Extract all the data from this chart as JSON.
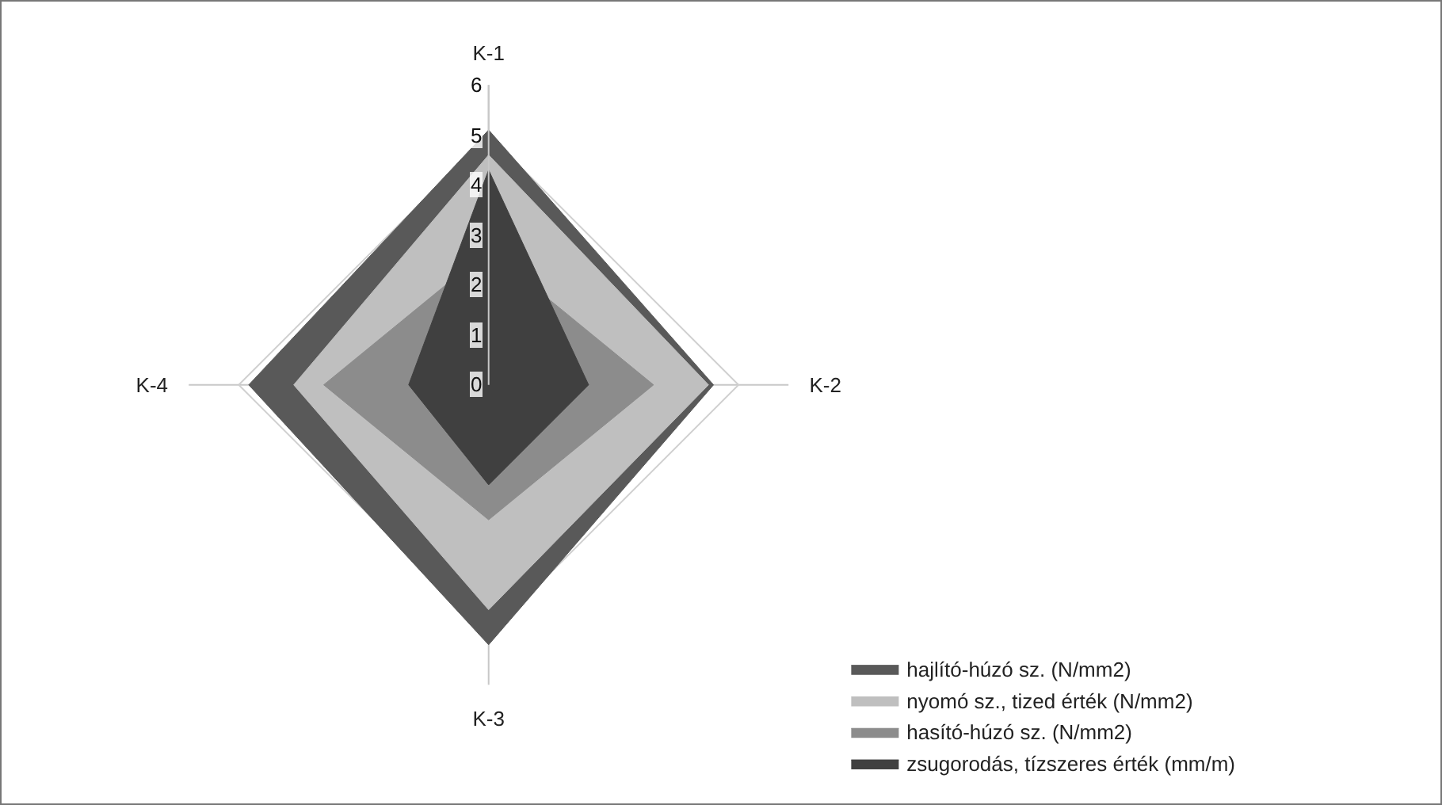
{
  "chart_data": {
    "type": "radar",
    "categories": [
      "K-1",
      "K-2",
      "K-3",
      "K-4"
    ],
    "ylim": [
      0,
      6
    ],
    "yticks": [
      0,
      1,
      2,
      3,
      4,
      5,
      6
    ],
    "grid": true,
    "legend": "bottom right",
    "series": [
      {
        "name": "hajlító-húzó sz. (N/mm2)",
        "color": "#595959",
        "values": [
          5.1,
          4.5,
          5.2,
          4.8
        ]
      },
      {
        "name": "nyomó sz., tized érték (N/mm2)",
        "color": "#bfbfbf",
        "values": [
          4.6,
          4.4,
          4.5,
          3.9
        ]
      },
      {
        "name": "hasító-húzó sz. (N/mm2)",
        "color": "#8c8c8c",
        "values": [
          2.7,
          3.3,
          2.7,
          3.3
        ]
      },
      {
        "name": "zsugorodás, tízszeres érték (mm/m)",
        "color": "#404040",
        "values": [
          4.3,
          2.0,
          2.0,
          1.6
        ]
      }
    ]
  }
}
